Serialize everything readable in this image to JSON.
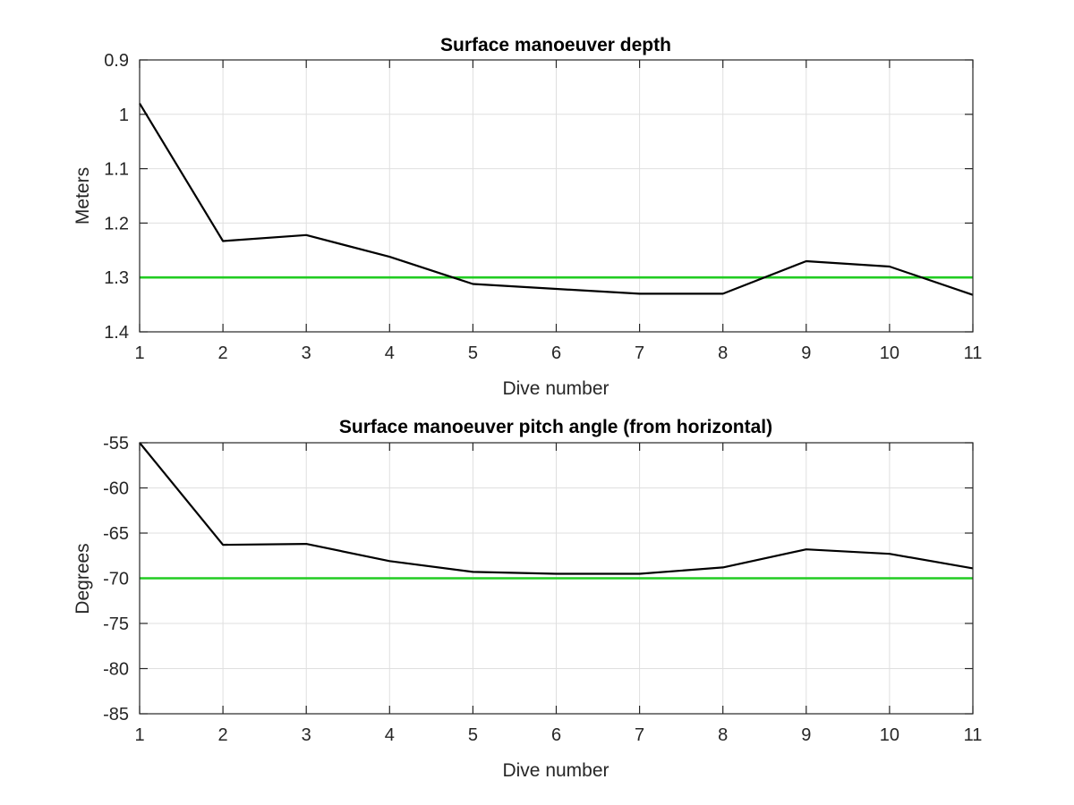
{
  "chart_data": [
    {
      "type": "line",
      "title": "Surface manoeuver depth",
      "xlabel": "Dive number",
      "ylabel": "Meters",
      "xlim": [
        1,
        11
      ],
      "ylim": [
        0.9,
        1.4
      ],
      "y_reversed": true,
      "grid": true,
      "x_ticks": [
        1,
        2,
        3,
        4,
        5,
        6,
        7,
        8,
        9,
        10,
        11
      ],
      "y_ticks": [
        0.9,
        1.0,
        1.1,
        1.2,
        1.3,
        1.4
      ],
      "y_tick_labels": [
        "0.9",
        "1",
        "1.1",
        "1.2",
        "1.3",
        "1.4"
      ],
      "series": [
        {
          "color": "#000000",
          "x": [
            1,
            2,
            3,
            4,
            5,
            6,
            7,
            8,
            9,
            10,
            11
          ],
          "values": [
            0.98,
            1.233,
            1.222,
            1.262,
            1.312,
            1.321,
            1.33,
            1.33,
            1.27,
            1.28,
            1.332
          ]
        }
      ],
      "reference_line": {
        "y": 1.3,
        "color": "#22cc22"
      }
    },
    {
      "type": "line",
      "title": "Surface manoeuver pitch angle (from horizontal)",
      "xlabel": "Dive number",
      "ylabel": "Degrees",
      "xlim": [
        1,
        11
      ],
      "ylim": [
        -85,
        -55
      ],
      "y_reversed": false,
      "grid": true,
      "x_ticks": [
        1,
        2,
        3,
        4,
        5,
        6,
        7,
        8,
        9,
        10,
        11
      ],
      "y_ticks": [
        -85,
        -80,
        -75,
        -70,
        -65,
        -60,
        -55
      ],
      "y_tick_labels": [
        "-85",
        "-80",
        "-75",
        "-70",
        "-65",
        "-60",
        "-55"
      ],
      "series": [
        {
          "color": "#000000",
          "x": [
            1,
            2,
            3,
            4,
            5,
            6,
            7,
            8,
            9,
            10,
            11
          ],
          "values": [
            -55,
            -66.3,
            -66.2,
            -68.1,
            -69.3,
            -69.5,
            -69.5,
            -68.8,
            -66.8,
            -67.3,
            -68.9
          ]
        }
      ],
      "reference_line": {
        "y": -70,
        "color": "#22cc22"
      }
    }
  ]
}
